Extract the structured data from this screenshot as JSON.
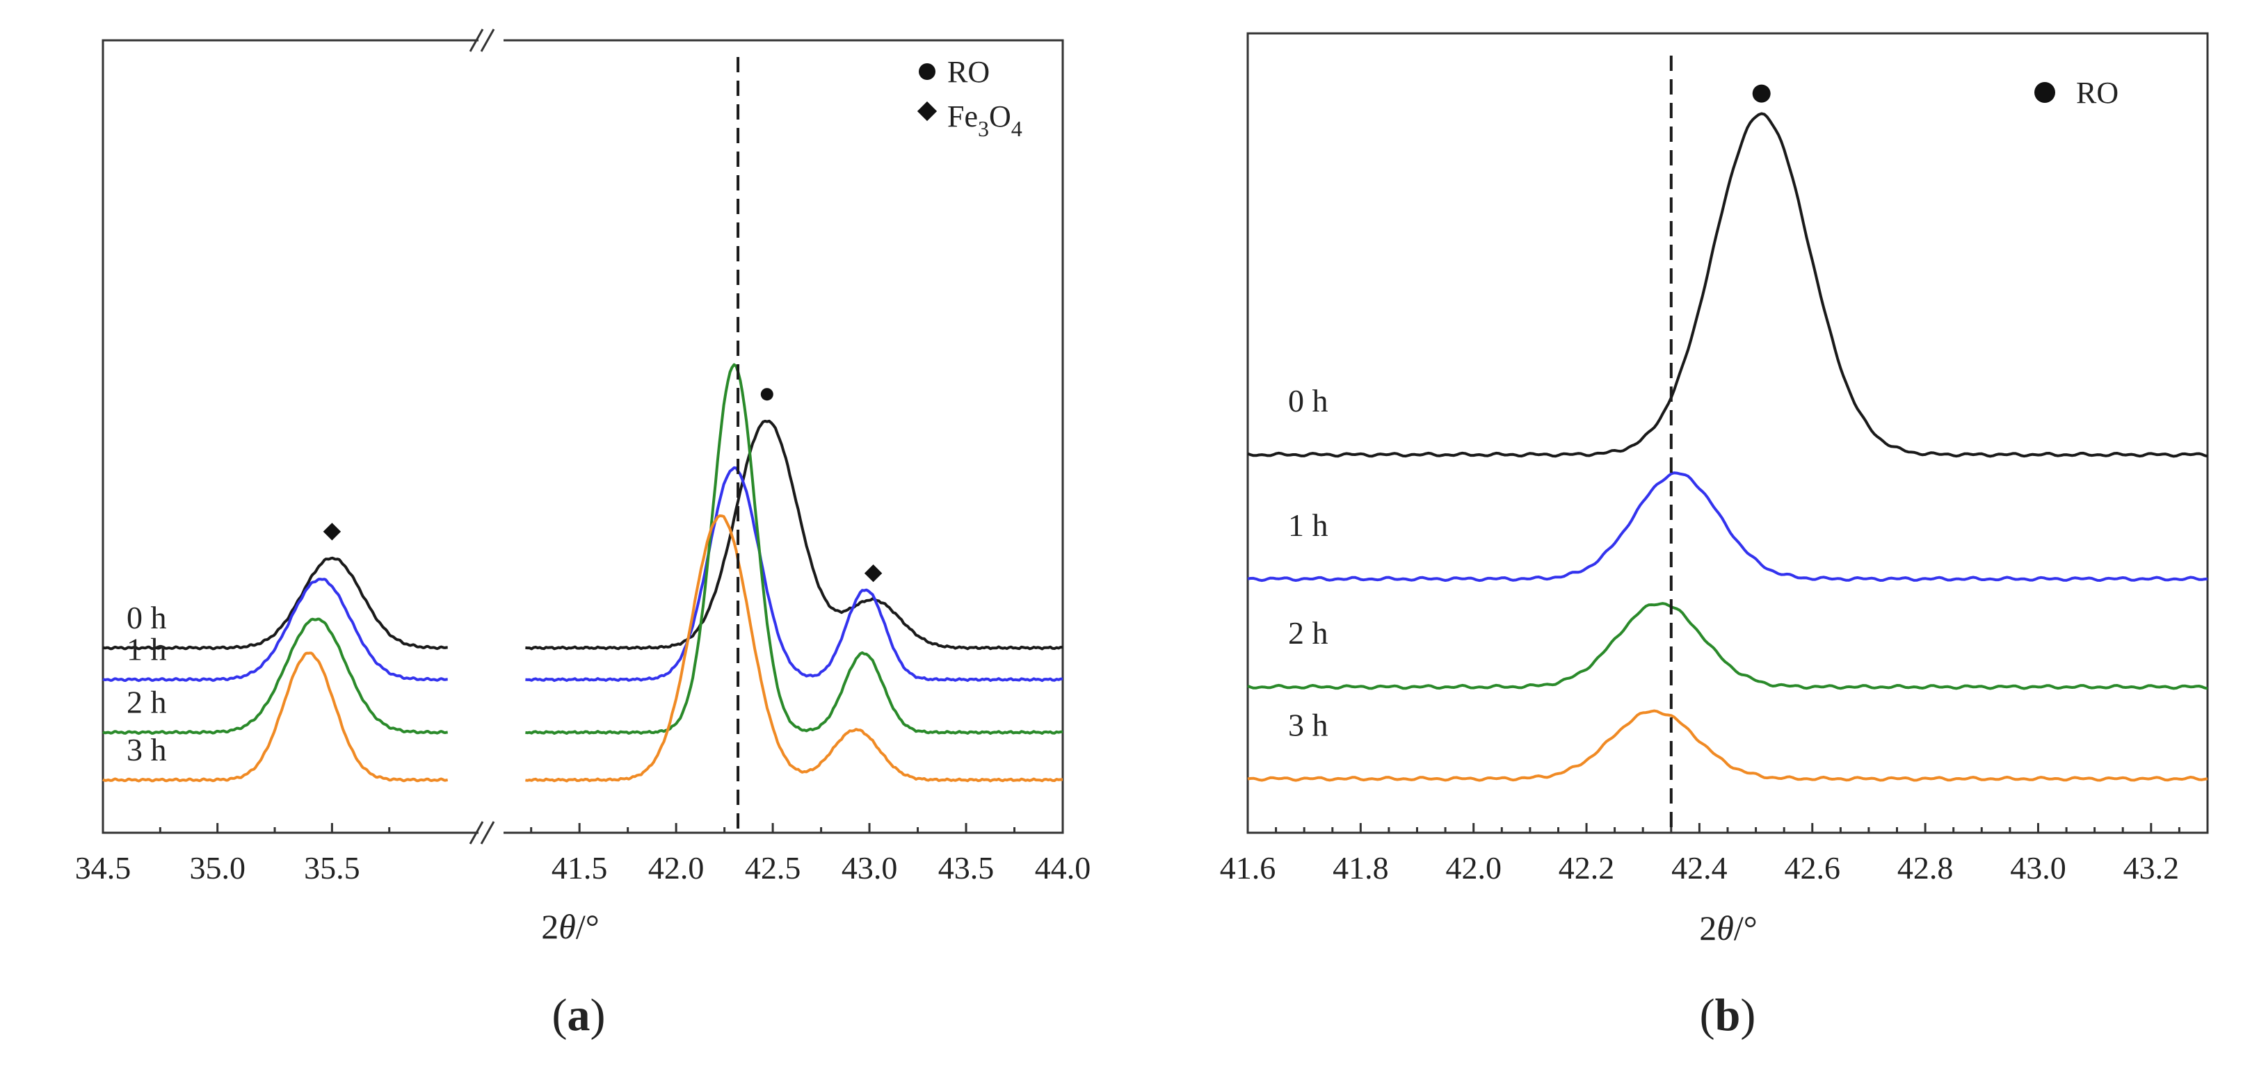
{
  "figure": {
    "panel_a": {
      "caption_letter": "a",
      "caption_open": "(",
      "caption_close": ")"
    },
    "panel_b": {
      "caption_letter": "b",
      "caption_open": "(",
      "caption_close": ")"
    },
    "axis_title": {
      "prefix": "2",
      "theta": "θ",
      "suffix": "/°"
    }
  },
  "chart_data": [
    {
      "id": "a",
      "type": "line",
      "title": "",
      "xlabel": "2θ/°",
      "ylabel": "",
      "broken_x_axis": true,
      "segments": [
        {
          "xlim": [
            34.5,
            36.1
          ]
        },
        {
          "xlim": [
            41.1,
            44.0
          ]
        }
      ],
      "x_ticks": [
        34.5,
        35.0,
        35.5,
        41.5,
        42.0,
        42.5,
        43.0,
        43.5,
        44.0
      ],
      "x_tick_labels": [
        "34.5",
        "35.0",
        "35.5",
        "41.5",
        "42.0",
        "42.5",
        "43.0",
        "43.5",
        "44.0"
      ],
      "reference_line_x": 42.32,
      "legend": {
        "position": "top-right",
        "items": [
          {
            "symbol": "circle",
            "label": "RO"
          },
          {
            "symbol": "diamond",
            "label_base": "Fe",
            "label_sub1": "3",
            "label_mid": "O",
            "label_sub2": "4"
          }
        ]
      },
      "series": [
        {
          "name": "0 h",
          "color": "#1a1a1a",
          "segment1": {
            "baseline": 0.7,
            "peaks": [
              {
                "x": 35.5,
                "h": 0.34,
                "w": 0.13
              }
            ]
          },
          "segment2": {
            "baseline": 0.7,
            "peaks": [
              {
                "x": 42.47,
                "h": 0.86,
                "w": 0.16
              },
              {
                "x": 43.02,
                "h": 0.18,
                "w": 0.14
              }
            ]
          },
          "markers": [
            {
              "symbol": "diamond",
              "x": 35.5
            },
            {
              "symbol": "circle",
              "x": 42.47
            },
            {
              "symbol": "diamond",
              "x": 43.02
            }
          ]
        },
        {
          "name": "1 h",
          "color": "#3333ee",
          "segment1": {
            "baseline": 0.58,
            "peaks": [
              {
                "x": 35.45,
                "h": 0.38,
                "w": 0.13
              }
            ]
          },
          "segment2": {
            "baseline": 0.58,
            "peaks": [
              {
                "x": 42.3,
                "h": 0.8,
                "w": 0.13
              },
              {
                "x": 42.98,
                "h": 0.34,
                "w": 0.1
              }
            ]
          }
        },
        {
          "name": "2 h",
          "color": "#2a8a2a",
          "segment1": {
            "baseline": 0.38,
            "peaks": [
              {
                "x": 35.43,
                "h": 0.43,
                "w": 0.13
              }
            ]
          },
          "segment2": {
            "baseline": 0.38,
            "peaks": [
              {
                "x": 42.3,
                "h": 1.39,
                "w": 0.11
              },
              {
                "x": 42.97,
                "h": 0.3,
                "w": 0.1
              }
            ]
          }
        },
        {
          "name": "3 h",
          "color": "#f08a24",
          "segment1": {
            "baseline": 0.2,
            "peaks": [
              {
                "x": 35.4,
                "h": 0.48,
                "w": 0.11
              }
            ]
          },
          "segment2": {
            "baseline": 0.2,
            "peaks": [
              {
                "x": 42.23,
                "h": 1.0,
                "w": 0.15
              },
              {
                "x": 42.93,
                "h": 0.19,
                "w": 0.12
              }
            ]
          }
        }
      ]
    },
    {
      "id": "b",
      "type": "line",
      "title": "",
      "xlabel": "2θ/°",
      "ylabel": "",
      "xlim": [
        41.6,
        43.3
      ],
      "x_ticks": [
        41.6,
        41.8,
        42.0,
        42.2,
        42.4,
        42.6,
        42.8,
        43.0,
        43.2
      ],
      "x_tick_labels": [
        "41.6",
        "41.8",
        "42.0",
        "42.2",
        "42.4",
        "42.6",
        "42.8",
        "43.0",
        "43.2"
      ],
      "reference_line_x": 42.35,
      "legend": {
        "position": "top-right",
        "items": [
          {
            "symbol": "circle",
            "label": "RO"
          }
        ]
      },
      "series": [
        {
          "name": "0 h",
          "color": "#1a1a1a",
          "baseline": 0.7,
          "peak": {
            "x": 42.51,
            "h": 0.63,
            "w": 0.085
          },
          "marker": {
            "symbol": "circle",
            "x": 42.51
          }
        },
        {
          "name": "1 h",
          "color": "#3333ee",
          "baseline": 0.47,
          "peak": {
            "x": 42.36,
            "h": 0.195,
            "w": 0.075
          }
        },
        {
          "name": "2 h",
          "color": "#2a8a2a",
          "baseline": 0.27,
          "peak": {
            "x": 42.33,
            "h": 0.155,
            "w": 0.075
          }
        },
        {
          "name": "3 h",
          "color": "#f08a24",
          "baseline": 0.1,
          "peak": {
            "x": 42.32,
            "h": 0.125,
            "w": 0.075
          }
        }
      ]
    }
  ]
}
